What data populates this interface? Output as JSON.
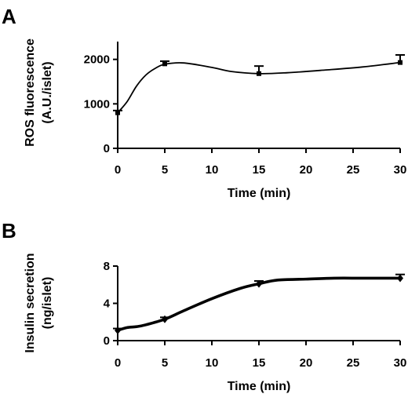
{
  "chart_data": [
    {
      "type": "line",
      "panel": "A",
      "title": "",
      "xlabel": "Time (min)",
      "ylabel": [
        "ROS fluorescence",
        "(A.U./islet)"
      ],
      "xlim": [
        0,
        30
      ],
      "ylim": [
        0,
        2400
      ],
      "xticks": [
        0,
        5,
        10,
        15,
        20,
        25,
        30
      ],
      "yticks": [
        0,
        1000,
        2000
      ],
      "grid": false,
      "series": [
        {
          "x": [
            0,
            5,
            15,
            30
          ],
          "y": [
            800,
            1900,
            1680,
            1930
          ],
          "error": [
            50,
            60,
            170,
            170
          ],
          "curve": [
            [
              0,
              800
            ],
            [
              1,
              1050
            ],
            [
              2,
              1400
            ],
            [
              3,
              1650
            ],
            [
              4,
              1800
            ],
            [
              5,
              1890
            ],
            [
              7,
              1920
            ],
            [
              10,
              1820
            ],
            [
              12,
              1730
            ],
            [
              15,
              1680
            ],
            [
              18,
              1700
            ],
            [
              22,
              1760
            ],
            [
              26,
              1830
            ],
            [
              30,
              1930
            ]
          ],
          "line_width": "thin",
          "color": "#000000"
        }
      ]
    },
    {
      "type": "line",
      "panel": "B",
      "title": "",
      "xlabel": "Time (min)",
      "ylabel": [
        "Insulin secretion",
        "(ng/islet)"
      ],
      "xlim": [
        0,
        30
      ],
      "ylim": [
        0,
        8
      ],
      "xticks": [
        0,
        5,
        10,
        15,
        20,
        25,
        30
      ],
      "yticks": [
        0,
        4,
        8
      ],
      "grid": false,
      "series": [
        {
          "x": [
            0,
            5,
            15,
            30
          ],
          "y": [
            1.1,
            2.3,
            6.1,
            6.7
          ],
          "error": [
            0.2,
            0.2,
            0.3,
            0.4
          ],
          "curve": [
            [
              0,
              1.1
            ],
            [
              1,
              1.4
            ],
            [
              2,
              1.5
            ],
            [
              3,
              1.7
            ],
            [
              5,
              2.3
            ],
            [
              7,
              3.2
            ],
            [
              10,
              4.5
            ],
            [
              13,
              5.6
            ],
            [
              15,
              6.1
            ],
            [
              17,
              6.5
            ],
            [
              20,
              6.6
            ],
            [
              23,
              6.7
            ],
            [
              26,
              6.7
            ],
            [
              30,
              6.7
            ]
          ],
          "line_width": "thick",
          "color": "#000000"
        }
      ]
    }
  ]
}
